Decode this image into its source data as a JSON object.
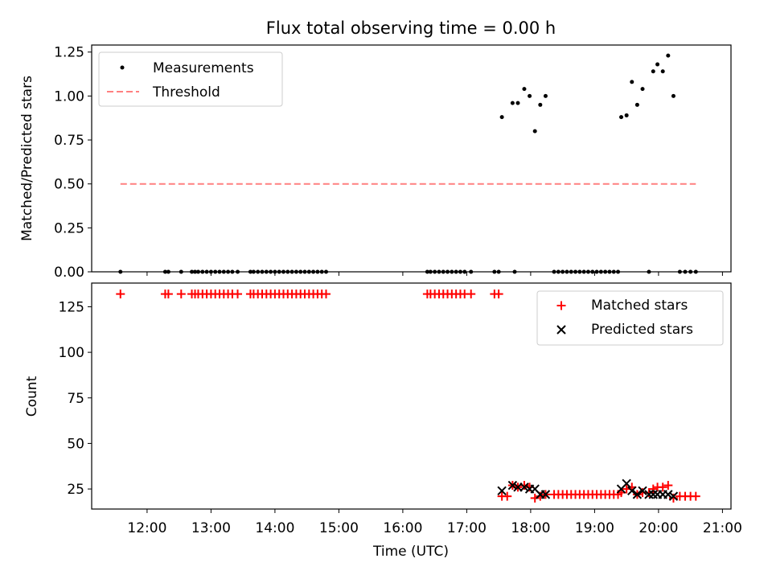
{
  "title": "Flux total observing time = 0.00 h",
  "colors": {
    "measurements": "#000000",
    "threshold": "#ff8080",
    "matched": "#ff0000",
    "predicted": "#000000"
  },
  "chart_data": [
    {
      "type": "scatter",
      "panel": "top",
      "xlabel": "",
      "ylabel": "Matched/Predicted stars",
      "xlim": [
        "11:08",
        "21:08"
      ],
      "ylim": [
        0,
        1.29
      ],
      "yticks": [
        0.0,
        0.25,
        0.5,
        0.75,
        1.0,
        1.25
      ],
      "ytick_labels": [
        "0.00",
        "0.25",
        "0.50",
        "0.75",
        "1.00",
        "1.25"
      ],
      "legend_position": "top-left",
      "threshold": {
        "name": "Threshold",
        "value": 0.5,
        "x_range": [
          "11:35",
          "20:35"
        ]
      },
      "series": [
        {
          "name": "Measurements",
          "points": [
            [
              "11:35",
              0
            ],
            [
              "12:17",
              0
            ],
            [
              "12:20",
              0
            ],
            [
              "12:32",
              0
            ],
            [
              "12:42",
              0
            ],
            [
              "12:45",
              0
            ],
            [
              "12:48",
              0
            ],
            [
              "12:52",
              0
            ],
            [
              "12:56",
              0
            ],
            [
              "13:00",
              0
            ],
            [
              "13:04",
              0
            ],
            [
              "13:08",
              0
            ],
            [
              "13:12",
              0
            ],
            [
              "13:16",
              0
            ],
            [
              "13:20",
              0
            ],
            [
              "13:25",
              0
            ],
            [
              "13:37",
              0
            ],
            [
              "13:40",
              0
            ],
            [
              "13:44",
              0
            ],
            [
              "13:48",
              0
            ],
            [
              "13:52",
              0
            ],
            [
              "13:56",
              0
            ],
            [
              "14:00",
              0
            ],
            [
              "14:04",
              0
            ],
            [
              "14:08",
              0
            ],
            [
              "14:12",
              0
            ],
            [
              "14:16",
              0
            ],
            [
              "14:20",
              0
            ],
            [
              "14:24",
              0
            ],
            [
              "14:28",
              0
            ],
            [
              "14:32",
              0
            ],
            [
              "14:36",
              0
            ],
            [
              "14:40",
              0
            ],
            [
              "14:44",
              0
            ],
            [
              "14:48",
              0
            ],
            [
              "16:23",
              0
            ],
            [
              "16:26",
              0
            ],
            [
              "16:30",
              0
            ],
            [
              "16:34",
              0
            ],
            [
              "16:38",
              0
            ],
            [
              "16:42",
              0
            ],
            [
              "16:46",
              0
            ],
            [
              "16:50",
              0
            ],
            [
              "16:54",
              0
            ],
            [
              "16:58",
              0
            ],
            [
              "17:04",
              0
            ],
            [
              "17:26",
              0
            ],
            [
              "17:30",
              0
            ],
            [
              "17:45",
              0
            ],
            [
              "17:33",
              0.88
            ],
            [
              "17:43",
              0.96
            ],
            [
              "17:48",
              0.96
            ],
            [
              "17:54",
              1.04
            ],
            [
              "17:59",
              1.0
            ],
            [
              "18:04",
              0.8
            ],
            [
              "18:09",
              0.95
            ],
            [
              "18:14",
              1.0
            ],
            [
              "18:22",
              0
            ],
            [
              "18:26",
              0
            ],
            [
              "18:30",
              0
            ],
            [
              "18:34",
              0
            ],
            [
              "18:38",
              0
            ],
            [
              "18:42",
              0
            ],
            [
              "18:46",
              0
            ],
            [
              "18:50",
              0
            ],
            [
              "18:54",
              0
            ],
            [
              "18:58",
              0
            ],
            [
              "19:02",
              0
            ],
            [
              "19:06",
              0
            ],
            [
              "19:10",
              0
            ],
            [
              "19:14",
              0
            ],
            [
              "19:18",
              0
            ],
            [
              "19:22",
              0
            ],
            [
              "19:51",
              0
            ],
            [
              "19:25",
              0.88
            ],
            [
              "19:30",
              0.89
            ],
            [
              "19:35",
              1.08
            ],
            [
              "19:40",
              0.95
            ],
            [
              "19:45",
              1.04
            ],
            [
              "19:55",
              1.14
            ],
            [
              "19:59",
              1.18
            ],
            [
              "20:04",
              1.14
            ],
            [
              "20:09",
              1.23
            ],
            [
              "20:14",
              1.0
            ],
            [
              "20:20",
              0
            ],
            [
              "20:25",
              0
            ],
            [
              "20:30",
              0
            ],
            [
              "20:35",
              0
            ]
          ]
        }
      ]
    },
    {
      "type": "scatter",
      "panel": "bottom",
      "xlabel": "Time (UTC)",
      "ylabel": "Count",
      "xlim": [
        "11:08",
        "21:08"
      ],
      "ylim": [
        14,
        138
      ],
      "yticks": [
        25,
        50,
        75,
        100,
        125
      ],
      "ytick_labels": [
        "25",
        "50",
        "75",
        "100",
        "125"
      ],
      "xticks": [
        "12:00",
        "13:00",
        "14:00",
        "15:00",
        "16:00",
        "17:00",
        "18:00",
        "19:00",
        "20:00",
        "21:00"
      ],
      "xtick_labels": [
        "12:00",
        "13:00",
        "14:00",
        "15:00",
        "16:00",
        "17:00",
        "18:00",
        "19:00",
        "20:00",
        "21:00"
      ],
      "legend_position": "top-right",
      "series": [
        {
          "name": "Matched stars",
          "marker": "plus",
          "points": [
            [
              "11:35",
              132
            ],
            [
              "12:17",
              132
            ],
            [
              "12:20",
              132
            ],
            [
              "12:32",
              132
            ],
            [
              "12:42",
              132
            ],
            [
              "12:45",
              132
            ],
            [
              "12:48",
              132
            ],
            [
              "12:52",
              132
            ],
            [
              "12:56",
              132
            ],
            [
              "13:00",
              132
            ],
            [
              "13:04",
              132
            ],
            [
              "13:08",
              132
            ],
            [
              "13:12",
              132
            ],
            [
              "13:16",
              132
            ],
            [
              "13:20",
              132
            ],
            [
              "13:25",
              132
            ],
            [
              "13:37",
              132
            ],
            [
              "13:40",
              132
            ],
            [
              "13:44",
              132
            ],
            [
              "13:48",
              132
            ],
            [
              "13:52",
              132
            ],
            [
              "13:56",
              132
            ],
            [
              "14:00",
              132
            ],
            [
              "14:04",
              132
            ],
            [
              "14:08",
              132
            ],
            [
              "14:12",
              132
            ],
            [
              "14:16",
              132
            ],
            [
              "14:20",
              132
            ],
            [
              "14:24",
              132
            ],
            [
              "14:28",
              132
            ],
            [
              "14:32",
              132
            ],
            [
              "14:36",
              132
            ],
            [
              "14:40",
              132
            ],
            [
              "14:44",
              132
            ],
            [
              "14:48",
              132
            ],
            [
              "16:23",
              132
            ],
            [
              "16:26",
              132
            ],
            [
              "16:30",
              132
            ],
            [
              "16:34",
              132
            ],
            [
              "16:38",
              132
            ],
            [
              "16:42",
              132
            ],
            [
              "16:46",
              132
            ],
            [
              "16:50",
              132
            ],
            [
              "16:54",
              132
            ],
            [
              "16:58",
              132
            ],
            [
              "17:04",
              132
            ],
            [
              "17:26",
              132
            ],
            [
              "17:30",
              132
            ],
            [
              "17:33",
              21
            ],
            [
              "17:38",
              21
            ],
            [
              "17:43",
              27
            ],
            [
              "17:48",
              26
            ],
            [
              "17:54",
              27
            ],
            [
              "17:59",
              26
            ],
            [
              "18:04",
              20
            ],
            [
              "18:09",
              21
            ],
            [
              "18:14",
              22
            ],
            [
              "18:22",
              22
            ],
            [
              "18:26",
              22
            ],
            [
              "18:30",
              22
            ],
            [
              "18:34",
              22
            ],
            [
              "18:38",
              22
            ],
            [
              "18:42",
              22
            ],
            [
              "18:46",
              22
            ],
            [
              "18:50",
              22
            ],
            [
              "18:54",
              22
            ],
            [
              "18:58",
              22
            ],
            [
              "19:02",
              22
            ],
            [
              "19:06",
              22
            ],
            [
              "19:10",
              22
            ],
            [
              "19:14",
              22
            ],
            [
              "19:18",
              22
            ],
            [
              "19:22",
              22
            ],
            [
              "19:25",
              23
            ],
            [
              "19:30",
              25
            ],
            [
              "19:35",
              26
            ],
            [
              "19:40",
              22
            ],
            [
              "19:45",
              23
            ],
            [
              "19:51",
              23
            ],
            [
              "19:55",
              25
            ],
            [
              "19:59",
              26
            ],
            [
              "20:04",
              26
            ],
            [
              "20:09",
              27
            ],
            [
              "20:14",
              20
            ],
            [
              "20:20",
              21
            ],
            [
              "20:25",
              21
            ],
            [
              "20:30",
              21
            ],
            [
              "20:35",
              21
            ]
          ]
        },
        {
          "name": "Predicted stars",
          "marker": "x",
          "points": [
            [
              "17:33",
              24
            ],
            [
              "17:43",
              27
            ],
            [
              "17:48",
              26
            ],
            [
              "17:54",
              26
            ],
            [
              "17:59",
              25
            ],
            [
              "18:04",
              25
            ],
            [
              "18:09",
              22
            ],
            [
              "18:14",
              22
            ],
            [
              "19:25",
              25
            ],
            [
              "19:30",
              28
            ],
            [
              "19:35",
              24
            ],
            [
              "19:40",
              22
            ],
            [
              "19:45",
              24
            ],
            [
              "19:51",
              22
            ],
            [
              "19:55",
              22
            ],
            [
              "19:59",
              22
            ],
            [
              "20:04",
              22
            ],
            [
              "20:09",
              22
            ],
            [
              "20:14",
              21
            ]
          ]
        }
      ]
    }
  ]
}
